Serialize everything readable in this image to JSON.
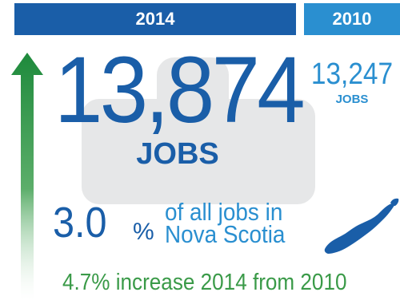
{
  "header": {
    "year_current": "2014",
    "year_previous": "2010"
  },
  "current": {
    "jobs_count": "13,874",
    "jobs_label": "JOBS",
    "share_value": "3.0",
    "share_symbol": "%",
    "share_desc_line1": "of all jobs in",
    "share_desc_line2": "Nova Scotia"
  },
  "previous": {
    "jobs_count": "13,247",
    "jobs_label": "JOBS"
  },
  "increase_text": "4.7% increase 2014 from 2010",
  "colors": {
    "dark_blue": "#1a5ea8",
    "light_blue": "#2a8fd0",
    "green": "#3a9a48",
    "panel_gray": "#e6e7e8"
  },
  "icons": [
    "up-arrow-icon",
    "nova-scotia-map-icon"
  ]
}
